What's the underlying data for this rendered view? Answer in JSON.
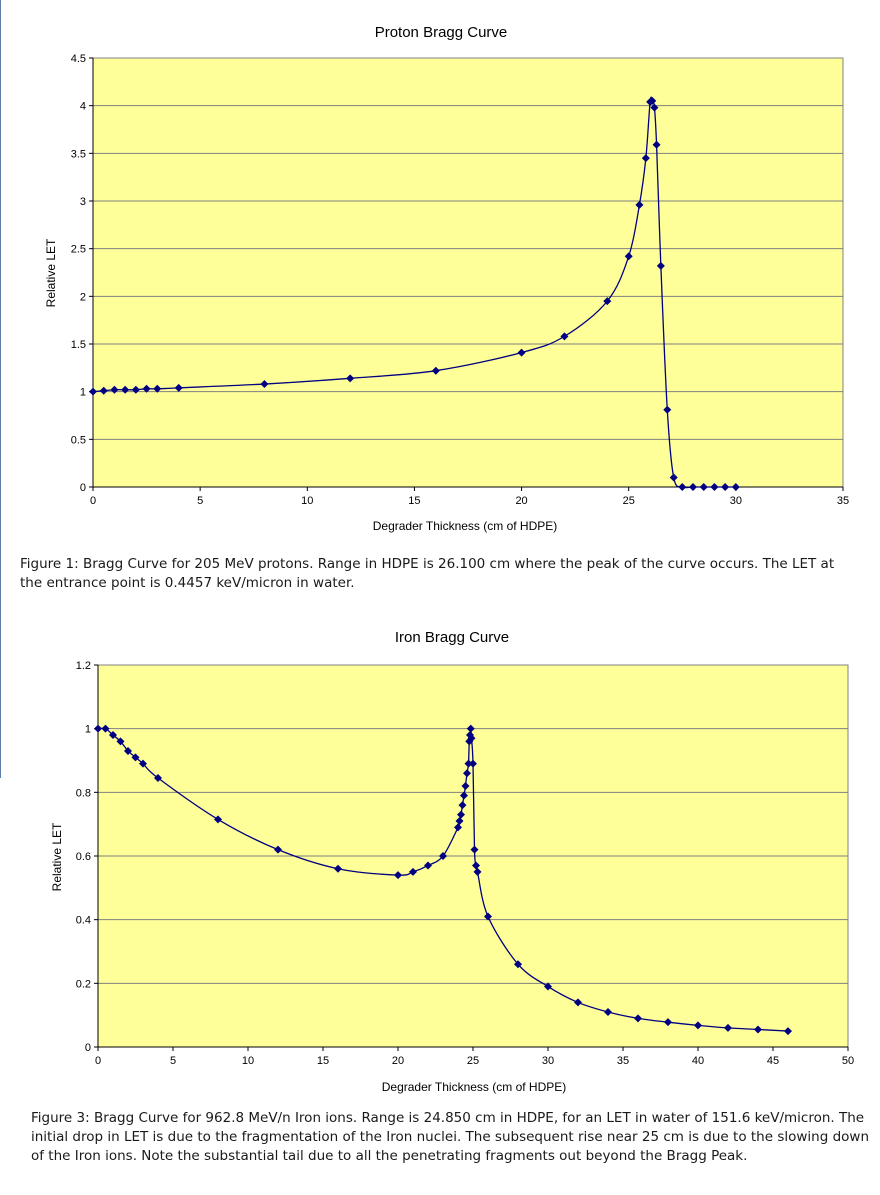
{
  "chart_data": [
    {
      "type": "scatter-line",
      "title": "Proton Bragg Curve",
      "xlabel": "Degrader Thickness (cm of HDPE)",
      "ylabel": "Relative LET",
      "xlim": [
        0,
        35
      ],
      "ylim": [
        0,
        4.5
      ],
      "xticks": [
        0,
        5,
        10,
        15,
        20,
        25,
        30,
        35
      ],
      "yticks": [
        0,
        0.5,
        1,
        1.5,
        2,
        2.5,
        3,
        3.5,
        4,
        4.5
      ],
      "xtick_labels": [
        "0",
        "5",
        "10",
        "15",
        "20",
        "25",
        "30",
        "35"
      ],
      "ytick_labels": [
        "0",
        "0.5",
        "1",
        "1.5",
        "2",
        "2.5",
        "3",
        "3.5",
        "4",
        "4.5"
      ],
      "grid": "horizontal",
      "plot_bg": "#ffff99",
      "series_color": "#000080",
      "x": [
        0,
        0.5,
        1,
        1.5,
        2,
        2.5,
        3,
        4,
        8,
        12,
        16,
        20,
        22,
        24,
        25,
        25.5,
        25.8,
        26,
        26.1,
        26.2,
        26.3,
        26.5,
        26.8,
        27.1,
        27.5,
        28,
        28.5,
        29,
        29.5,
        30
      ],
      "y": [
        1.0,
        1.01,
        1.02,
        1.02,
        1.02,
        1.03,
        1.03,
        1.04,
        1.08,
        1.14,
        1.22,
        1.41,
        1.58,
        1.95,
        2.42,
        2.96,
        3.45,
        4.04,
        4.05,
        3.98,
        3.59,
        2.32,
        0.81,
        0.1,
        0.0,
        0.0,
        0.0,
        0.0,
        0.0,
        0.0
      ]
    },
    {
      "type": "scatter-line",
      "title": "Iron Bragg Curve",
      "xlabel": "Degrader Thickness (cm of HDPE)",
      "ylabel": "Relative LET",
      "xlim": [
        0,
        50
      ],
      "ylim": [
        0,
        1.2
      ],
      "xticks": [
        0,
        5,
        10,
        15,
        20,
        25,
        30,
        35,
        40,
        45,
        50
      ],
      "yticks": [
        0,
        0.2,
        0.4,
        0.6,
        0.8,
        1,
        1.2
      ],
      "xtick_labels": [
        "0",
        "5",
        "10",
        "15",
        "20",
        "25",
        "30",
        "35",
        "40",
        "45",
        "50"
      ],
      "ytick_labels": [
        "0",
        "0.2",
        "0.4",
        "0.6",
        "0.8",
        "1",
        "1.2"
      ],
      "grid": "horizontal",
      "plot_bg": "#ffff99",
      "series_color": "#000080",
      "x": [
        0,
        0.5,
        1,
        1.5,
        2,
        2.5,
        3,
        4,
        8,
        12,
        16,
        20,
        21,
        22,
        23,
        24,
        24.1,
        24.2,
        24.3,
        24.4,
        24.5,
        24.6,
        24.7,
        24.75,
        24.8,
        24.85,
        24.9,
        25.0,
        25.1,
        25.2,
        25.3,
        26,
        28,
        30,
        32,
        34,
        36,
        38,
        40,
        42,
        44,
        46
      ],
      "y": [
        1.0,
        1.0,
        0.98,
        0.96,
        0.93,
        0.91,
        0.89,
        0.845,
        0.715,
        0.62,
        0.56,
        0.54,
        0.55,
        0.57,
        0.6,
        0.69,
        0.71,
        0.73,
        0.76,
        0.79,
        0.82,
        0.86,
        0.89,
        0.96,
        0.98,
        1.0,
        0.97,
        0.89,
        0.62,
        0.57,
        0.55,
        0.41,
        0.26,
        0.19,
        0.14,
        0.11,
        0.09,
        0.078,
        0.068,
        0.06,
        0.055,
        0.05
      ]
    }
  ],
  "captions": {
    "figure1": "Figure 1: Bragg Curve for 205 MeV protons. Range in HDPE is 26.100 cm where the peak of the curve occurs. The LET at the entrance point is 0.4457 keV/micron in water.",
    "figure3": "Figure 3: Bragg Curve for 962.8 MeV/n Iron ions. Range is 24.850 cm in HDPE, for an LET in water of 151.6 keV/micron. The initial drop in LET is due to the fragmentation of the Iron nuclei. The subsequent rise near 25 cm is due to the slowing down of the Iron ions. Note the substantial tail due to all the penetrating fragments out beyond the Bragg Peak."
  }
}
